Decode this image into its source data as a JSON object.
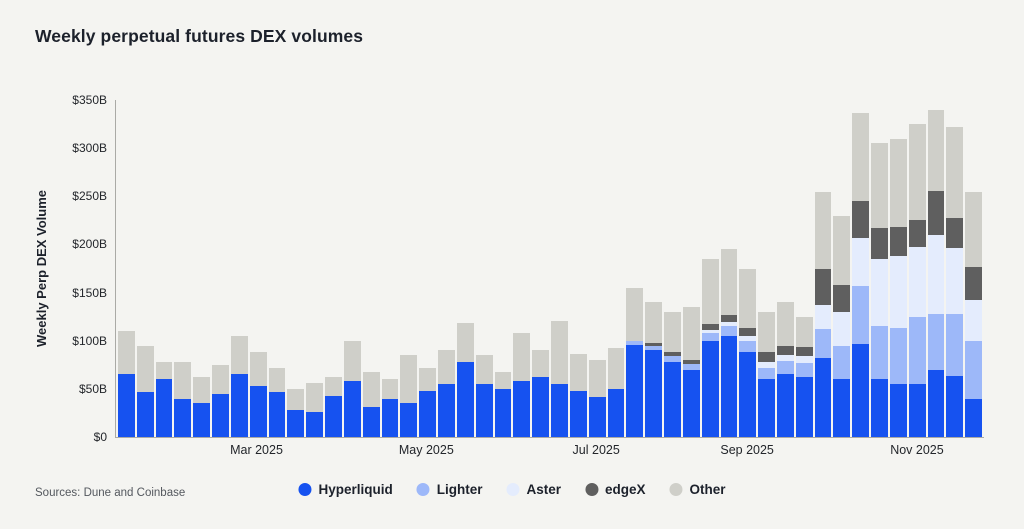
{
  "title": "Weekly perpetual futures DEX volumes",
  "source_note": "Sources: Dune and Coinbase",
  "y_axis_label": "Weekly Perp DEX Volume",
  "colors": {
    "background": "#f4f4f1",
    "hyperliquid": "#1652f0",
    "lighter": "#9db8f9",
    "aster": "#e4ecfd",
    "edgex": "#5f5f5f",
    "other": "#cfcfc9",
    "axis": "#aaaaa6"
  },
  "legend": {
    "items": [
      {
        "label": "Hyperliquid",
        "color": "#1652f0"
      },
      {
        "label": "Lighter",
        "color": "#9db8f9"
      },
      {
        "label": "Aster",
        "color": "#e4ecfd"
      },
      {
        "label": "edgeX",
        "color": "#5f5f5f"
      },
      {
        "label": "Other",
        "color": "#cfcfc9"
      }
    ]
  },
  "chart_data": {
    "type": "bar",
    "stacked": true,
    "title": "Weekly perpetual futures DEX volumes",
    "xlabel": "",
    "ylabel": "Weekly Perp DEX Volume",
    "ylim": [
      0,
      350
    ],
    "units": "$B per week",
    "grid": false,
    "legend_position": "bottom",
    "y_ticks": [
      {
        "value": 0,
        "label": "$0"
      },
      {
        "value": 50,
        "label": "$50B"
      },
      {
        "value": 100,
        "label": "$100B"
      },
      {
        "value": 150,
        "label": "$150B"
      },
      {
        "value": 200,
        "label": "$200B"
      },
      {
        "value": 250,
        "label": "$250B"
      },
      {
        "value": 300,
        "label": "$300B"
      },
      {
        "value": 350,
        "label": "$350B"
      }
    ],
    "x_ticks": [
      {
        "index": 7,
        "label": "Mar 2025"
      },
      {
        "index": 16,
        "label": "May 2025"
      },
      {
        "index": 25,
        "label": "Jul 2025"
      },
      {
        "index": 33,
        "label": "Sep 2025"
      },
      {
        "index": 42,
        "label": "Nov 2025"
      }
    ],
    "x_description": "46 weekly bars from mid-January 2025 through early December 2025",
    "series": [
      {
        "name": "Hyperliquid",
        "color": "#1652f0",
        "values": [
          65,
          47,
          60,
          40,
          35,
          45,
          65,
          53,
          47,
          28,
          26,
          43,
          58,
          31,
          40,
          35,
          48,
          55,
          78,
          55,
          50,
          58,
          62,
          55,
          48,
          42,
          50,
          96,
          90,
          78,
          70,
          100,
          105,
          88,
          60,
          65,
          62,
          82,
          60,
          97,
          60,
          55,
          55,
          70,
          63,
          40
        ]
      },
      {
        "name": "Lighter",
        "color": "#9db8f9",
        "values": [
          0,
          0,
          0,
          0,
          0,
          0,
          0,
          0,
          0,
          0,
          0,
          0,
          0,
          0,
          0,
          0,
          0,
          0,
          0,
          0,
          0,
          0,
          0,
          0,
          0,
          0,
          0,
          4,
          5,
          6,
          6,
          8,
          10,
          12,
          12,
          14,
          15,
          30,
          35,
          60,
          55,
          58,
          70,
          58,
          65,
          60
        ]
      },
      {
        "name": "Aster",
        "color": "#e4ecfd",
        "values": [
          0,
          0,
          0,
          0,
          0,
          0,
          0,
          0,
          0,
          0,
          0,
          0,
          0,
          0,
          0,
          0,
          0,
          0,
          0,
          0,
          0,
          0,
          0,
          0,
          0,
          0,
          0,
          0,
          0,
          0,
          0,
          3,
          4,
          5,
          6,
          6,
          7,
          25,
          35,
          50,
          70,
          75,
          72,
          82,
          68,
          42
        ]
      },
      {
        "name": "edgeX",
        "color": "#5f5f5f",
        "values": [
          0,
          0,
          0,
          0,
          0,
          0,
          0,
          0,
          0,
          0,
          0,
          0,
          0,
          0,
          0,
          0,
          0,
          0,
          0,
          0,
          0,
          0,
          0,
          0,
          0,
          0,
          0,
          0,
          3,
          4,
          4,
          6,
          8,
          8,
          10,
          10,
          10,
          38,
          28,
          38,
          32,
          30,
          28,
          45,
          32,
          35
        ]
      },
      {
        "name": "Other",
        "color": "#cfcfc9",
        "values": [
          45,
          48,
          18,
          38,
          27,
          30,
          40,
          35,
          25,
          22,
          30,
          19,
          42,
          37,
          20,
          50,
          24,
          35,
          40,
          30,
          18,
          50,
          28,
          65,
          38,
          38,
          42,
          55,
          42,
          42,
          55,
          68,
          68,
          62,
          42,
          45,
          31,
          80,
          72,
          92,
          88,
          92,
          100,
          85,
          94,
          78
        ]
      }
    ]
  }
}
